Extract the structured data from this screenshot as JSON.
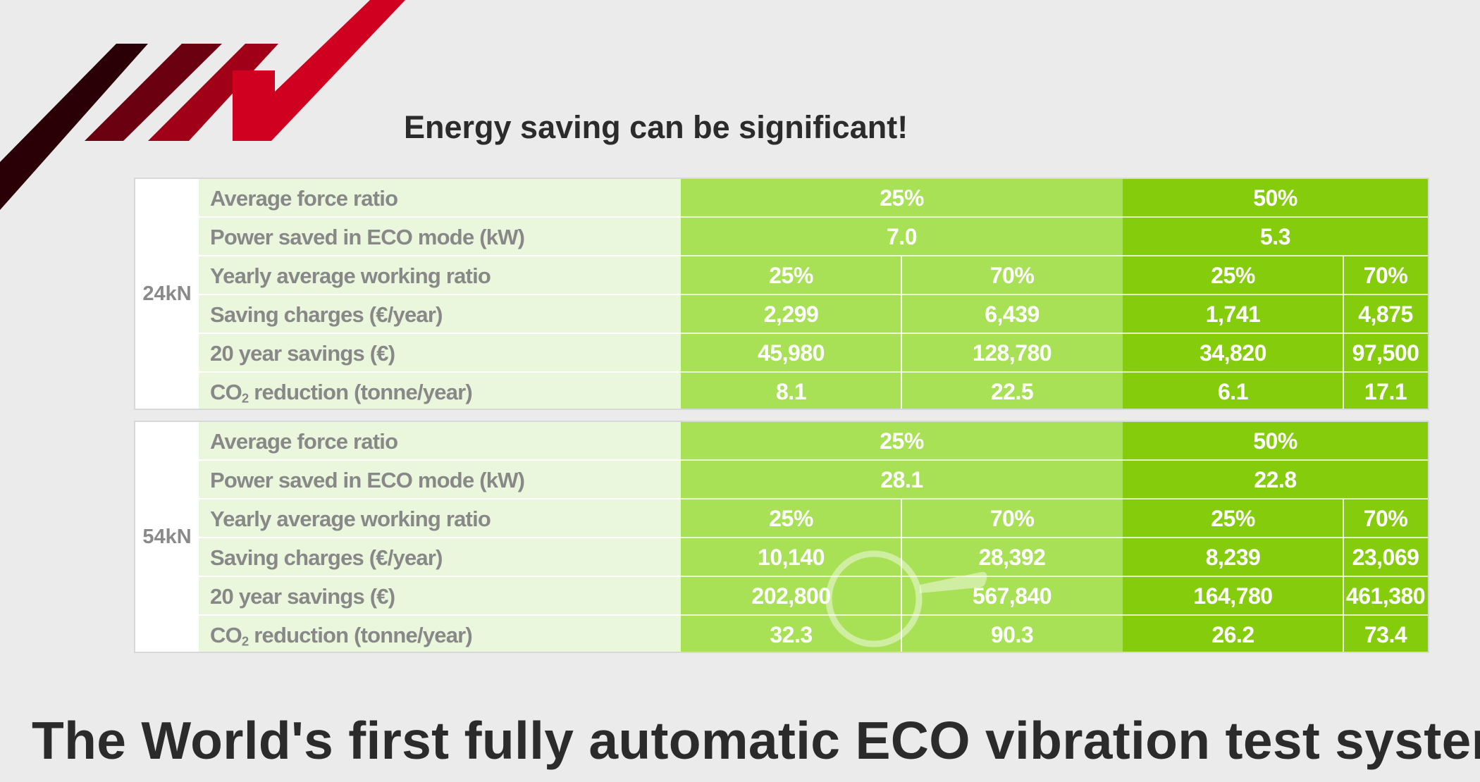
{
  "headline": "The World's first fully automatic ECO vibration test system",
  "subtitle": "Energy saving can be significant!",
  "colors": {
    "logo_dark": "#2a0006",
    "logo_red": "#d00020",
    "label_bg": "#ebf7dd",
    "col_25_bg": "#a8e056",
    "col_50_bg": "#84cc0c",
    "text_dark": "#2b2b2b"
  },
  "row_labels": {
    "avg_force": "Average force ratio",
    "power_saved": "Power saved in ECO mode (kW)",
    "working_ratio": "Yearly average working ratio",
    "saving_charges": "Saving charges (€/year)",
    "twenty_year": "20 year savings (€)",
    "co2_prefix": "CO",
    "co2_sub": "2",
    "co2_suffix": " reduction (tonne/year)"
  },
  "tables": [
    {
      "force": "24kN",
      "ratio_a": "25%",
      "ratio_b": "50%",
      "power_a": "7.0",
      "power_b": "5.3",
      "work": [
        "25%",
        "70%",
        "25%",
        "70%"
      ],
      "charges": [
        "2,299",
        "6,439",
        "1,741",
        "4,875"
      ],
      "savings": [
        "45,980",
        "128,780",
        "34,820",
        "97,500"
      ],
      "co2": [
        "8.1",
        "22.5",
        "6.1",
        "17.1"
      ]
    },
    {
      "force": "54kN",
      "ratio_a": "25%",
      "ratio_b": "50%",
      "power_a": "28.1",
      "power_b": "22.8",
      "work": [
        "25%",
        "70%",
        "25%",
        "70%"
      ],
      "charges": [
        "10,140",
        "28,392",
        "8,239",
        "23,069"
      ],
      "savings": [
        "202,800",
        "567,840",
        "164,780",
        "461,380"
      ],
      "co2": [
        "32.3",
        "90.3",
        "26.2",
        "73.4"
      ]
    }
  ]
}
